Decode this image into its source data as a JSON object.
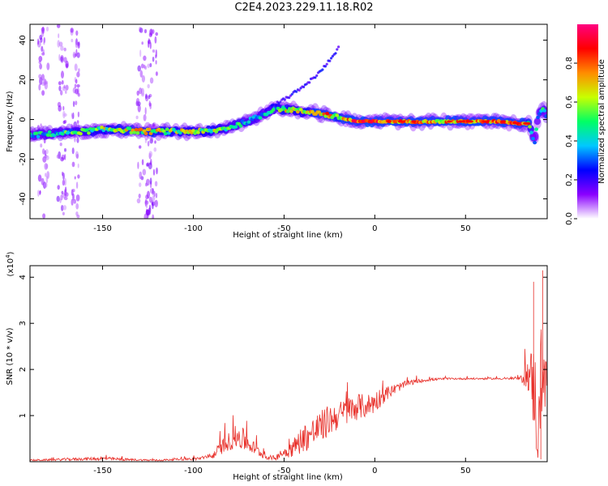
{
  "title": "C2E4.2023.229.11.18.R02",
  "chart_data": [
    {
      "type": "heatmap",
      "xlabel": "Height of straight line (km)",
      "ylabel": "Frequency (Hz)",
      "xlim": [
        -190,
        95
      ],
      "ylim": [
        -50,
        48
      ],
      "x_ticks": [
        -150,
        -100,
        -50,
        0,
        50
      ],
      "y_ticks": [
        -40,
        -20,
        0,
        20,
        40
      ],
      "colorbar": {
        "label": "Normalized spectral amplitude",
        "range": [
          0.0,
          1.0
        ],
        "ticks": [
          0.0,
          0.2,
          0.4,
          0.6,
          0.8
        ],
        "colors": [
          "#ffffff",
          "#8a00ff",
          "#0000ff",
          "#00c8ff",
          "#00ff64",
          "#c8ff00",
          "#ff8c00",
          "#ff0000",
          "#ff0080"
        ]
      },
      "ridge": {
        "x": [
          -190,
          -175,
          -160,
          -150,
          -140,
          -130,
          -120,
          -110,
          -100,
          -90,
          -80,
          -70,
          -60,
          -55,
          -50,
          -45,
          -40,
          -35,
          -30,
          -25,
          -20,
          -15,
          -10,
          -5,
          0,
          10,
          20,
          30,
          40,
          50,
          60,
          70,
          80,
          85,
          88,
          90,
          93,
          95
        ],
        "freq": [
          -8,
          -7,
          -6,
          -5,
          -5,
          -6,
          -6,
          -6,
          -6,
          -6,
          -4,
          -1,
          3,
          6,
          5,
          5,
          4,
          4,
          3,
          2,
          1,
          0,
          -1,
          -1,
          -1,
          -1,
          -1,
          -1,
          -1,
          -1,
          -1,
          -1,
          -2,
          -2,
          -12,
          2,
          6,
          0
        ],
        "amplitude": [
          0.35,
          0.4,
          0.5,
          0.55,
          0.6,
          0.65,
          0.6,
          0.55,
          0.55,
          0.55,
          0.45,
          0.45,
          0.4,
          0.45,
          0.6,
          0.55,
          0.55,
          0.6,
          0.7,
          0.75,
          0.6,
          0.75,
          0.9,
          0.85,
          0.85,
          0.75,
          0.7,
          0.7,
          0.7,
          0.7,
          0.75,
          0.75,
          0.8,
          0.6,
          0.3,
          0.35,
          0.4,
          0.3
        ]
      },
      "branch": {
        "x": [
          -60,
          -50,
          -40,
          -30,
          -20
        ],
        "freq": [
          5,
          10,
          16,
          24,
          36
        ]
      }
    },
    {
      "type": "line",
      "xlabel": "Height of straight line (km)",
      "ylabel": "SNR (10 * v/v)",
      "y_multiplier": "(x10",
      "y_multiplier_exp": "4",
      "y_multiplier_close": ")",
      "xlim": [
        -190,
        95
      ],
      "ylim": [
        0,
        4.25
      ],
      "x_ticks": [
        -150,
        -100,
        -50,
        0,
        50
      ],
      "y_ticks": [
        1,
        2,
        3,
        4
      ],
      "series": [
        {
          "color": "#e8302a",
          "x": [
            -190,
            -180,
            -170,
            -160,
            -150,
            -140,
            -130,
            -120,
            -110,
            -100,
            -90,
            -85,
            -80,
            -75,
            -70,
            -65,
            -60,
            -55,
            -50,
            -45,
            -40,
            -35,
            -30,
            -25,
            -20,
            -15,
            -10,
            -5,
            0,
            5,
            10,
            15,
            20,
            25,
            30,
            40,
            50,
            60,
            70,
            80,
            85,
            88,
            90,
            92,
            94,
            95
          ],
          "y": [
            0.03,
            0.04,
            0.05,
            0.06,
            0.07,
            0.05,
            0.04,
            0.03,
            0.05,
            0.06,
            0.1,
            0.3,
            0.45,
            0.55,
            0.4,
            0.25,
            0.1,
            0.08,
            0.2,
            0.3,
            0.5,
            0.6,
            0.75,
            0.9,
            1.0,
            1.1,
            1.2,
            1.2,
            1.3,
            1.45,
            1.55,
            1.65,
            1.72,
            1.75,
            1.78,
            1.8,
            1.8,
            1.8,
            1.8,
            1.8,
            1.9,
            1.6,
            0.4,
            2.2,
            1.7,
            1.8
          ],
          "noise": [
            0.02,
            0.02,
            0.03,
            0.03,
            0.04,
            0.03,
            0.02,
            0.02,
            0.02,
            0.03,
            0.05,
            0.15,
            0.2,
            0.3,
            0.2,
            0.12,
            0.05,
            0.05,
            0.12,
            0.2,
            0.3,
            0.35,
            0.35,
            0.35,
            0.3,
            0.3,
            0.3,
            0.25,
            0.25,
            0.18,
            0.12,
            0.08,
            0.06,
            0.04,
            0.03,
            0.02,
            0.02,
            0.02,
            0.02,
            0.03,
            0.4,
            1.1,
            0.6,
            1.2,
            0.6,
            0.3
          ]
        }
      ]
    }
  ]
}
